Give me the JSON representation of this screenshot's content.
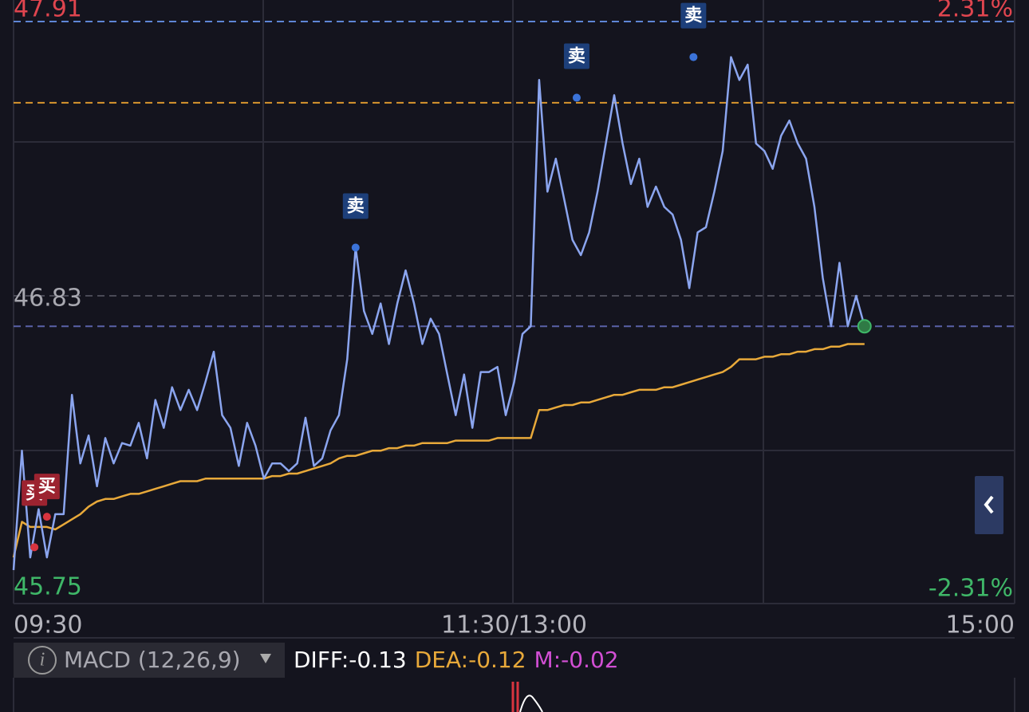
{
  "chart_data": {
    "type": "line",
    "x": [
      0,
      2,
      4,
      6,
      8,
      10,
      12,
      14,
      16,
      18,
      20,
      22,
      24,
      26,
      28,
      30,
      32,
      34,
      36,
      38,
      40,
      42,
      44,
      46,
      48,
      50,
      52,
      54,
      56,
      58,
      60,
      62,
      64,
      66,
      68,
      70,
      72,
      74,
      76,
      78,
      80,
      82,
      84,
      86,
      88,
      90,
      92,
      94,
      96,
      98,
      100,
      102,
      104,
      106,
      108,
      110,
      112,
      114,
      116,
      118,
      120,
      122,
      124,
      126,
      128,
      130,
      132,
      134,
      136,
      138,
      140,
      142,
      144,
      146,
      148,
      150,
      152,
      154,
      156,
      158,
      160,
      162,
      164,
      166,
      168,
      170,
      172,
      174,
      176,
      178,
      180,
      182,
      184,
      186,
      188,
      190,
      192,
      194,
      196,
      198,
      200,
      202,
      204
    ],
    "series": [
      {
        "color": "#8ba5ef",
        "values": [
          45.75,
          46.22,
          45.8,
          45.99,
          45.8,
          45.97,
          45.97,
          46.44,
          46.17,
          46.28,
          46.08,
          46.27,
          46.17,
          46.25,
          46.24,
          46.33,
          46.19,
          46.42,
          46.31,
          46.47,
          46.38,
          46.46,
          46.38,
          46.49,
          46.61,
          46.36,
          46.31,
          46.16,
          46.33,
          46.24,
          46.11,
          46.17,
          46.17,
          46.14,
          46.17,
          46.35,
          46.16,
          46.19,
          46.3,
          46.36,
          46.58,
          47.02,
          46.77,
          46.68,
          46.8,
          46.64,
          46.8,
          46.93,
          46.8,
          46.64,
          46.74,
          46.68,
          46.52,
          46.36,
          46.52,
          46.31,
          46.53,
          46.53,
          46.55,
          46.36,
          46.49,
          46.68,
          46.71,
          47.68,
          47.24,
          47.37,
          47.21,
          47.05,
          46.99,
          47.08,
          47.24,
          47.43,
          47.62,
          47.43,
          47.27,
          47.37,
          47.18,
          47.26,
          47.18,
          47.15,
          47.05,
          46.86,
          47.08,
          47.1,
          47.24,
          47.4,
          47.77,
          47.68,
          47.74,
          47.43,
          47.4,
          47.33,
          47.46,
          47.52,
          47.43,
          47.37,
          47.18,
          46.9,
          46.71,
          46.96,
          46.71,
          46.83,
          46.71
        ]
      },
      {
        "color": "#e8a93a",
        "values": [
          45.8,
          45.94,
          45.92,
          45.92,
          45.92,
          45.91,
          45.93,
          45.95,
          45.97,
          46.0,
          46.02,
          46.03,
          46.03,
          46.04,
          46.05,
          46.05,
          46.06,
          46.07,
          46.08,
          46.09,
          46.1,
          46.1,
          46.1,
          46.11,
          46.11,
          46.11,
          46.11,
          46.11,
          46.11,
          46.11,
          46.11,
          46.12,
          46.12,
          46.13,
          46.13,
          46.14,
          46.15,
          46.16,
          46.17,
          46.19,
          46.2,
          46.2,
          46.21,
          46.22,
          46.22,
          46.23,
          46.23,
          46.24,
          46.24,
          46.25,
          46.25,
          46.25,
          46.25,
          46.26,
          46.26,
          46.26,
          46.26,
          46.26,
          46.27,
          46.27,
          46.27,
          46.27,
          46.27,
          46.38,
          46.38,
          46.39,
          46.4,
          46.4,
          46.41,
          46.41,
          46.42,
          46.43,
          46.44,
          46.44,
          46.45,
          46.46,
          46.46,
          46.46,
          46.47,
          46.47,
          46.48,
          46.49,
          46.5,
          46.51,
          46.52,
          46.53,
          46.55,
          46.58,
          46.58,
          46.58,
          46.59,
          46.59,
          46.6,
          46.6,
          46.61,
          46.61,
          46.62,
          46.62,
          46.63,
          46.63,
          46.64,
          46.64,
          46.64
        ]
      }
    ],
    "xlim": [
      0,
      240
    ],
    "xticks": [
      {
        "value": 0,
        "label": "09:30"
      },
      {
        "value": 120,
        "label": "11:30/13:00"
      },
      {
        "value": 240,
        "label": "15:00"
      }
    ],
    "ylim": [
      45.75,
      47.91
    ],
    "yticks": [
      47.91,
      46.83,
      45.75
    ],
    "ytick_colors": [
      "#e0454f",
      "#a8a8b0",
      "#3fb768"
    ],
    "y2lim": [
      -2.31,
      2.31
    ],
    "y2ticks": [
      {
        "value": 2.31,
        "label": "2.31%"
      },
      {
        "value": -2.31,
        "label": "-2.31%"
      }
    ],
    "y2tick_colors": [
      "#e0454f",
      "#3fb768"
    ],
    "reference_lines": [
      {
        "value": 47.91,
        "color": "#5f86d6"
      },
      {
        "value": 47.59,
        "color": "#d9962e"
      },
      {
        "value": 46.83,
        "color": "#4a4a56"
      },
      {
        "value": 46.71,
        "color": "#5a62a8"
      }
    ],
    "annotations": [
      {
        "label": "卖",
        "x": 82,
        "y": 47.02,
        "color": "#1d3f7a",
        "dot": "#3b73d9"
      },
      {
        "label": "卖",
        "x": 135,
        "y": 47.61,
        "color": "#1d3f7a",
        "dot": "#3b73d9"
      },
      {
        "label": "卖",
        "x": 163,
        "y": 47.77,
        "color": "#1d3f7a",
        "dot": "#3b73d9"
      },
      {
        "label": "买",
        "x": 5,
        "y": 45.84,
        "color": "#9c2330",
        "dot": "#d8343f"
      },
      {
        "label": "买",
        "x": 8,
        "y": 45.96,
        "color": "#9c2330",
        "dot": "#d8343f"
      }
    ]
  },
  "indicator": {
    "name": "MACD (12,26,9)",
    "items": [
      {
        "text": "DIFF:-0.13",
        "color": "#ffffff"
      },
      {
        "text": "DEA:-0.12",
        "color": "#e8a93a"
      },
      {
        "text": "M:-0.02",
        "color": "#d24fd4"
      }
    ]
  }
}
